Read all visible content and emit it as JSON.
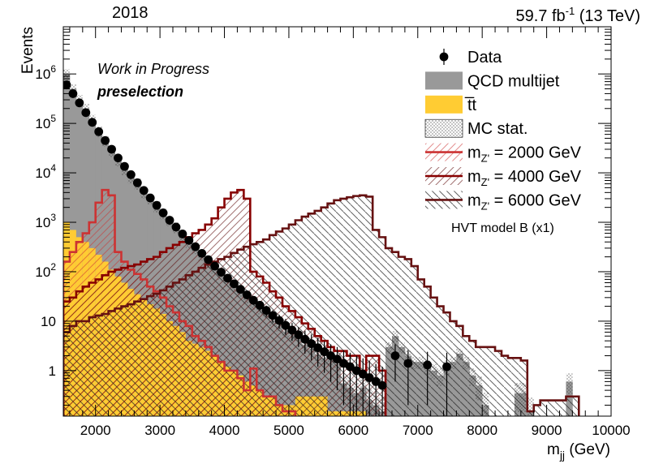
{
  "chart_data": {
    "type": "histogram",
    "header_left": "2018",
    "header_right": "59.7 fb⁻¹  (13 TeV)",
    "annotation_1": "Work in Progress",
    "annotation_2": "preselection",
    "xlabel": "mⱼⱼ (GeV)",
    "ylabel": "Events",
    "xlim": [
      1500,
      10000
    ],
    "ylim": [
      0.12,
      9000000
    ],
    "yscale": "log",
    "grid": false,
    "legend_position": "top-right",
    "legend_note": "HVT model B (x1)",
    "x_ticks": [
      "2000",
      "3000",
      "4000",
      "5000",
      "6000",
      "7000",
      "8000",
      "9000",
      "10000"
    ],
    "y_ticks": [
      "1",
      "10",
      "10²",
      "10³",
      "10⁴",
      "10⁵",
      "10⁶"
    ],
    "bin_edges": [
      1500,
      1600,
      1700,
      1800,
      1900,
      2000,
      2100,
      2200,
      2300,
      2400,
      2500,
      2600,
      2700,
      2800,
      2900,
      3000,
      3100,
      3200,
      3300,
      3400,
      3500,
      3600,
      3700,
      3800,
      3900,
      4000,
      4100,
      4200,
      4300,
      4400,
      4500,
      4600,
      4700,
      4800,
      4900,
      5000,
      5100,
      5200,
      5300,
      5400,
      5500,
      5600,
      5700,
      5800,
      5900,
      6000,
      6100,
      6200,
      6300,
      6400,
      6500,
      6600,
      6700,
      6800,
      6900,
      7000,
      7100,
      7200,
      7300,
      7400,
      7500,
      7600,
      7700,
      7800,
      7900,
      8000,
      8100,
      8200,
      8300,
      8400,
      8500,
      8600,
      8700,
      8800,
      8900,
      9000,
      9100,
      9200,
      9300,
      9400,
      9500,
      9600,
      9700,
      9800,
      9900,
      10000
    ],
    "series": [
      {
        "name": "Data",
        "kind": "points",
        "color": "#000000",
        "x": [
          1550,
          1650,
          1750,
          1850,
          1950,
          2050,
          2150,
          2250,
          2350,
          2450,
          2550,
          2650,
          2750,
          2850,
          2950,
          3050,
          3150,
          3250,
          3350,
          3450,
          3550,
          3650,
          3750,
          3850,
          3950,
          4050,
          4150,
          4250,
          4350,
          4450,
          4550,
          4650,
          4750,
          4850,
          4950,
          5050,
          5150,
          5250,
          5350,
          5450,
          5550,
          5650,
          5750,
          5850,
          5950,
          6050,
          6150,
          6250,
          6350,
          6450,
          6550,
          6650,
          6750,
          6850,
          6950,
          7050,
          7150,
          7250,
          7350,
          7450
        ],
        "y": [
          600000,
          400000,
          260000,
          165000,
          105000,
          68000,
          45000,
          30000,
          20000,
          13500,
          9200,
          6300,
          4400,
          3100,
          2200,
          1550,
          1100,
          800,
          580,
          430,
          320,
          235,
          175,
          130,
          98,
          74,
          57,
          44,
          34,
          26.5,
          21,
          16.5,
          13,
          10.3,
          8.2,
          6.6,
          5.3,
          4.3,
          3.5,
          2.9,
          2.4,
          2.0,
          1.7,
          1.4,
          1.2,
          1.0,
          0.85,
          0.72,
          0.6,
          0.5,
          null,
          2,
          null,
          1.4,
          null,
          null,
          1.3,
          null,
          null,
          1.2
        ],
        "yerr": [
          800,
          650,
          520,
          410,
          330,
          260,
          210,
          175,
          140,
          115,
          95,
          80,
          66,
          56,
          47,
          39,
          33,
          28,
          24,
          21,
          18,
          15,
          13,
          11.4,
          10,
          8.6,
          7.6,
          6.6,
          5.8,
          5.1,
          4.6,
          4.1,
          3.6,
          3.2,
          2.9,
          2.6,
          2.3,
          2.1,
          1.9,
          1.7,
          1.5,
          1.4,
          1.3,
          1.2,
          1.1,
          1.0,
          0.92,
          0.85,
          0.77,
          0.7,
          null,
          1.4,
          null,
          1.2,
          null,
          null,
          1.1,
          null,
          null,
          1.1
        ]
      },
      {
        "name": "QCD multijet",
        "kind": "stacked-fill",
        "color": "#999999",
        "values": [
          1000000,
          500000,
          300000,
          200000,
          120000,
          70000,
          45000,
          28000,
          18000,
          12000,
          8000,
          6000,
          4000,
          3000,
          2100,
          1500,
          1100,
          800,
          550,
          400,
          300,
          220,
          160,
          120,
          90,
          65,
          50,
          40,
          30,
          22,
          18,
          15,
          10,
          8,
          6,
          5,
          5,
          3,
          2.5,
          1.8,
          1.5,
          1.5,
          1.2,
          0.4,
          0.3,
          0.2,
          0.3,
          0.25,
          0.2,
          0.15,
          3,
          5,
          3,
          2,
          1.5,
          1.5,
          1.2,
          1,
          0.8,
          1.2,
          1.5,
          2.2,
          1.5,
          0.8,
          0.5,
          0.2,
          0,
          0,
          0,
          0,
          0.35,
          0.35,
          0.15,
          0,
          0,
          0,
          0,
          0,
          0.6,
          0,
          0,
          0,
          0,
          0,
          0
        ]
      },
      {
        "name": "t̅t",
        "kind": "stacked-fill",
        "color": "#ffcc33",
        "values": [
          1000,
          700,
          500,
          400,
          300,
          220,
          160,
          110,
          80,
          60,
          45,
          35,
          28,
          22,
          18,
          14,
          10,
          8,
          6,
          4,
          3.5,
          3,
          2.5,
          2,
          1.5,
          1.2,
          1,
          0.8,
          0.6,
          0.5,
          0.4,
          0.3,
          0.3,
          0.2,
          0.2,
          0.2,
          0.3,
          0.3,
          0.3,
          0.3,
          0.3,
          0.15,
          0.15,
          0.15,
          0.15,
          0.15,
          0.15,
          0,
          0,
          0,
          0,
          0,
          0,
          0,
          0,
          0,
          0,
          0,
          0,
          0,
          0,
          0,
          0,
          0,
          0,
          0,
          0,
          0,
          0,
          0,
          0,
          0,
          0,
          0,
          0,
          0,
          0,
          0,
          0,
          0,
          0,
          0,
          0,
          0,
          0
        ]
      },
      {
        "name": "MC stat.",
        "kind": "band",
        "color": "#777777"
      },
      {
        "name": "m₂′ = 2000 GeV",
        "legend_label": "m_Z' = 2000 GeV",
        "kind": "signal",
        "color": "#cc3333",
        "values": [
          160,
          250,
          400,
          600,
          1000,
          2500,
          4500,
          3500,
          250,
          160,
          110,
          90,
          70,
          50,
          40,
          30,
          20,
          15,
          10,
          8,
          5,
          4,
          3,
          2,
          1.5,
          1,
          1,
          0.7,
          0.4,
          1.1,
          0.4,
          0.3,
          0.3,
          0.2,
          0.15,
          0.15,
          0.1,
          0.1,
          0.1,
          0.1,
          0.1,
          0.1,
          0.1,
          0,
          0,
          0,
          0,
          0,
          0,
          0,
          0,
          0,
          0,
          0,
          0,
          0,
          0,
          0,
          0,
          0,
          0,
          0,
          0,
          0,
          0,
          0,
          0,
          0,
          0,
          0,
          0,
          0,
          0,
          0,
          0,
          0,
          0,
          0,
          0,
          0,
          0,
          0,
          0,
          0,
          0
        ]
      },
      {
        "name": "m₂′ = 4000 GeV",
        "legend_label": "m_Z' = 4000 GeV",
        "kind": "signal",
        "color": "#880000",
        "values": [
          25,
          30,
          40,
          50,
          60,
          70,
          85,
          100,
          110,
          120,
          130,
          140,
          160,
          180,
          200,
          250,
          300,
          350,
          400,
          500,
          600,
          700,
          900,
          1200,
          2000,
          3000,
          4000,
          4500,
          3000,
          100,
          80,
          60,
          40,
          30,
          20,
          16,
          12,
          9,
          7,
          5,
          4,
          3,
          2.5,
          2.5,
          2,
          2,
          1,
          2,
          2,
          1,
          0,
          0,
          0,
          0,
          0,
          0,
          0,
          0,
          0,
          0,
          0,
          0,
          0,
          0,
          0,
          0,
          0,
          0,
          0,
          0,
          0,
          0,
          0,
          0,
          0,
          0,
          0,
          0,
          0,
          0,
          0,
          0,
          0,
          0,
          0
        ]
      },
      {
        "name": "m₂′ = 6000 GeV",
        "legend_label": "m_Z' = 6000 GeV",
        "kind": "signal",
        "color": "#661111",
        "values": [
          6,
          8,
          10,
          10,
          12,
          13,
          14,
          16,
          18,
          20,
          22,
          25,
          28,
          32,
          36,
          42,
          50,
          60,
          70,
          85,
          100,
          120,
          140,
          160,
          180,
          200,
          240,
          280,
          320,
          360,
          400,
          450,
          550,
          650,
          750,
          900,
          1100,
          1300,
          1500,
          1700,
          2000,
          2400,
          2800,
          3000,
          3200,
          3400,
          3500,
          3300,
          700,
          500,
          300,
          250,
          200,
          180,
          130,
          70,
          50,
          30,
          20,
          15,
          10,
          8,
          5,
          4,
          3,
          3,
          3,
          2.5,
          2,
          1.8,
          1.8,
          1.6,
          0.15,
          0.2,
          0.25,
          0.25,
          0.25,
          0.25,
          0.3,
          0.3,
          0,
          0,
          0,
          0,
          0
        ]
      }
    ]
  }
}
